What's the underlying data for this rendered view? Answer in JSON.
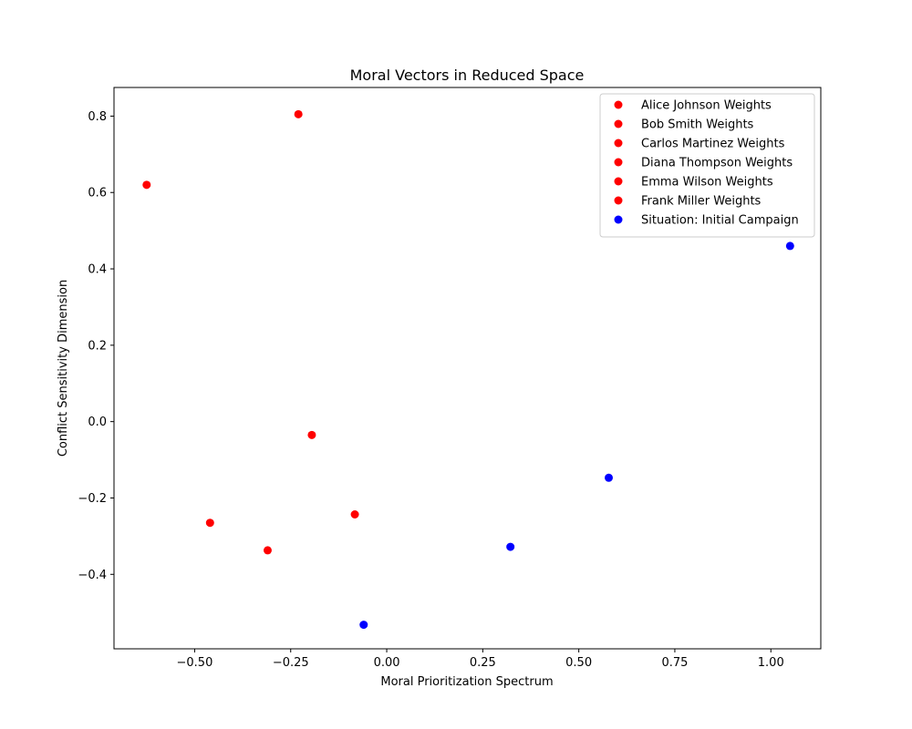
{
  "chart_data": {
    "type": "scatter",
    "title": "Moral Vectors in Reduced Space",
    "xlabel": "Moral Prioritization Spectrum",
    "ylabel": "Conflict Sensitivity Dimension",
    "xlim": [
      -0.71,
      1.13
    ],
    "ylim": [
      -0.595,
      0.875
    ],
    "xticks": [
      -0.5,
      -0.25,
      0.0,
      0.25,
      0.5,
      0.75,
      1.0
    ],
    "xtick_labels": [
      "−0.50",
      "−0.25",
      "0.00",
      "0.25",
      "0.50",
      "0.75",
      "1.00"
    ],
    "yticks": [
      -0.4,
      -0.2,
      0.0,
      0.2,
      0.4,
      0.6,
      0.8
    ],
    "ytick_labels": [
      "−0.4",
      "−0.2",
      "0.0",
      "0.2",
      "0.4",
      "0.6",
      "0.8"
    ],
    "grid": false,
    "legend_position": "top-right",
    "series": [
      {
        "name": "Alice Johnson Weights",
        "color": "#ff0000",
        "points": [
          [
            -0.23,
            0.805
          ]
        ]
      },
      {
        "name": "Bob Smith Weights",
        "color": "#ff0000",
        "points": [
          [
            -0.625,
            0.62
          ]
        ]
      },
      {
        "name": "Carlos Martinez Weights",
        "color": "#ff0000",
        "points": [
          [
            -0.195,
            -0.035
          ]
        ]
      },
      {
        "name": "Diana Thompson Weights",
        "color": "#ff0000",
        "points": [
          [
            -0.083,
            -0.243
          ]
        ]
      },
      {
        "name": "Emma Wilson Weights",
        "color": "#ff0000",
        "points": [
          [
            -0.46,
            -0.265
          ]
        ]
      },
      {
        "name": "Frank Miller Weights",
        "color": "#ff0000",
        "points": [
          [
            -0.31,
            -0.337
          ]
        ]
      },
      {
        "name": "Situation: Initial Campaign",
        "color": "#0000ff",
        "points": [
          [
            1.05,
            0.46
          ],
          [
            0.578,
            -0.147
          ],
          [
            0.322,
            -0.328
          ],
          [
            -0.06,
            -0.532
          ]
        ]
      }
    ]
  }
}
